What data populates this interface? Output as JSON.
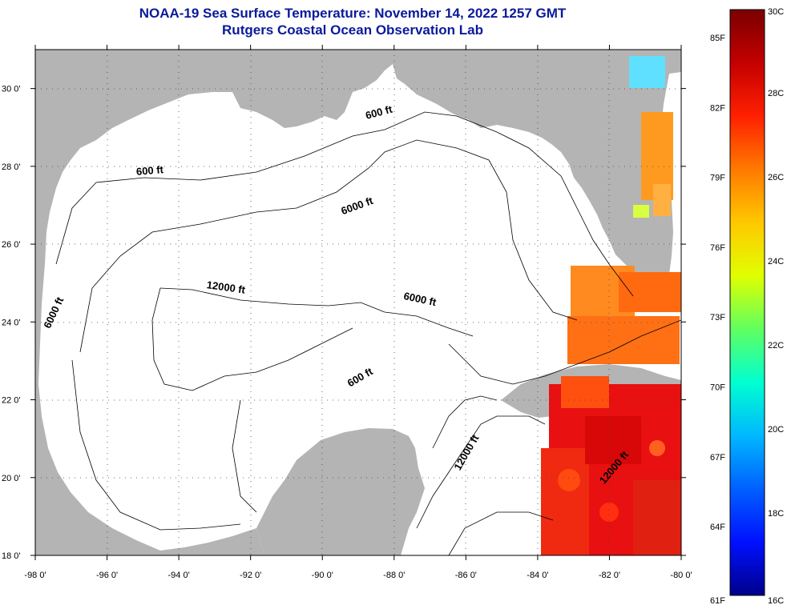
{
  "header": {
    "title_line1": "NOAA-19 Sea Surface Temperature:  November 14, 2022 1257 GMT",
    "title_line2": "Rutgers Coastal Ocean Observation Lab"
  },
  "map": {
    "lon_range": [
      -98,
      -80
    ],
    "lat_range": [
      18,
      31
    ],
    "lon_ticks": [
      "-98 0'",
      "-96 0'",
      "-94 0'",
      "-92 0'",
      "-90 0'",
      "-88 0'",
      "-86 0'",
      "-84 0'",
      "-82 0'",
      "-80 0'"
    ],
    "lat_ticks": [
      "18 0'",
      "20 0'",
      "22 0'",
      "24 0'",
      "26 0'",
      "28 0'",
      "30 0'"
    ],
    "land_color": "#b4b4b4",
    "ocean_color": "#ffffff",
    "contour_labels": [
      {
        "text": "600 ft",
        "lon": -94.8,
        "lat": 27.8,
        "angle": -5
      },
      {
        "text": "600 ft",
        "lon": -88.4,
        "lat": 29.3,
        "angle": -15
      },
      {
        "text": "6000 ft",
        "lon": -89.0,
        "lat": 26.9,
        "angle": -20
      },
      {
        "text": "12000 ft",
        "lon": -92.7,
        "lat": 24.8,
        "angle": 8
      },
      {
        "text": "6000 ft",
        "lon": -87.3,
        "lat": 24.5,
        "angle": 12
      },
      {
        "text": "600 ft",
        "lon": -88.9,
        "lat": 22.5,
        "angle": -30
      },
      {
        "text": "6000 ft",
        "lon": -97.4,
        "lat": 24.2,
        "angle": -65
      },
      {
        "text": "12000 ft",
        "lon": -85.9,
        "lat": 20.6,
        "angle": -60
      },
      {
        "text": "12000 ft",
        "lon": -81.8,
        "lat": 20.2,
        "angle": -50
      }
    ]
  },
  "colorbar": {
    "fahrenheit_labels": [
      "85F",
      "82F",
      "79F",
      "76F",
      "73F",
      "70F",
      "67F",
      "64F",
      "61F"
    ],
    "celsius_labels": [
      "30C",
      "28C",
      "26C",
      "24C",
      "22C",
      "20C",
      "18C",
      "16C"
    ],
    "colors": [
      "#7a0000",
      "#c40000",
      "#ff2000",
      "#ff7a00",
      "#ffc800",
      "#e0ff00",
      "#60ff60",
      "#00ffd0",
      "#00b8ff",
      "#0060ff",
      "#0010ff",
      "#00008a"
    ]
  }
}
